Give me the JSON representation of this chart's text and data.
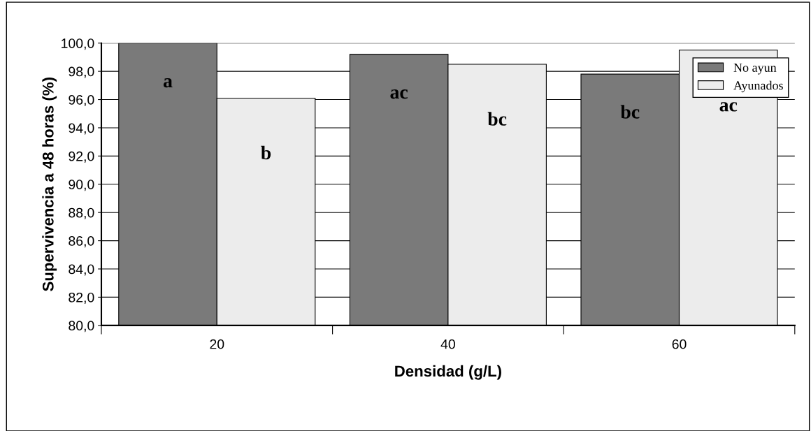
{
  "chart_data": {
    "type": "bar",
    "xlabel": "Densidad (g/L)",
    "ylabel": "Supervivencia a 48 horas (%)",
    "categories": [
      "20",
      "40",
      "60"
    ],
    "series": [
      {
        "name": "No ayun",
        "color": "#7a7a7a",
        "values": [
          100.0,
          99.2,
          97.8
        ],
        "value_labels": [
          "a",
          "ac",
          "bc"
        ]
      },
      {
        "name": "Ayunados",
        "color": "#ececec",
        "values": [
          96.1,
          98.5,
          99.5
        ],
        "value_labels": [
          "b",
          "bc",
          "ac"
        ]
      }
    ],
    "ylim": [
      80,
      100
    ],
    "yticks": [
      {
        "value": 80,
        "label": "80,0"
      },
      {
        "value": 82,
        "label": "82,0"
      },
      {
        "value": 84,
        "label": "84,0"
      },
      {
        "value": 86,
        "label": "86,0"
      },
      {
        "value": 88,
        "label": "88,0"
      },
      {
        "value": 90,
        "label": "90,0"
      },
      {
        "value": 92,
        "label": "92,0"
      },
      {
        "value": 94,
        "label": "94,0"
      },
      {
        "value": 96,
        "label": "96,0"
      },
      {
        "value": 98,
        "label": "98,0"
      },
      {
        "value": 100,
        "label": "100,0"
      }
    ],
    "grid": "y",
    "legend": "top right"
  }
}
